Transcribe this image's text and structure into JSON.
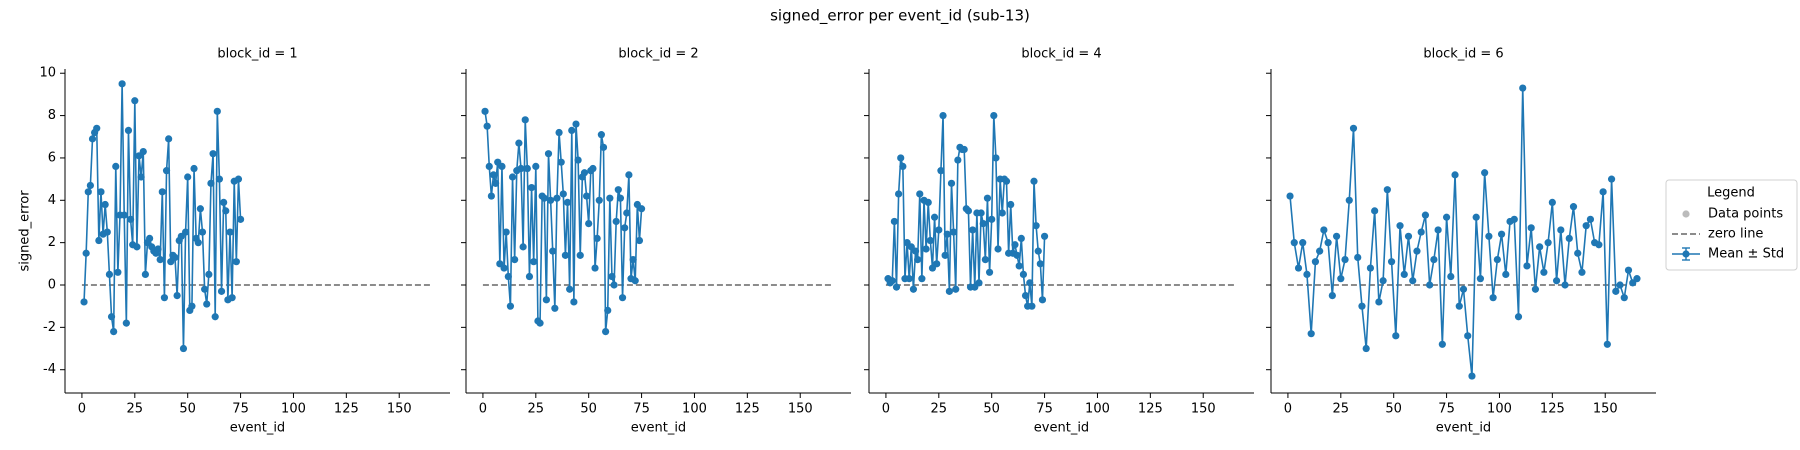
{
  "title": "signed_error per event_id (sub-13)",
  "legend": {
    "title": "Legend",
    "entries": [
      {
        "label": "Data points",
        "kind": "point",
        "color": "#bbbbbb"
      },
      {
        "label": "zero line",
        "kind": "dashed",
        "color": "#666666"
      },
      {
        "label": "Mean ± Std",
        "kind": "errorbar",
        "color": "#1f77b4"
      }
    ]
  },
  "chart_data": [
    {
      "type": "line",
      "title": "block_id = 1",
      "x_label": "event_id",
      "y_label": "signed_error",
      "ytick_labels": true,
      "xlim": [
        -8,
        174
      ],
      "xticks": [
        0,
        25,
        50,
        75,
        100,
        125,
        150
      ],
      "ylim": [
        -5.1,
        10.2
      ],
      "yticks": [
        -4,
        -2,
        0,
        2,
        4,
        6,
        8,
        10
      ],
      "zero_line": {
        "value": 0,
        "x": [
          0,
          165
        ],
        "color": "#666666"
      },
      "x": [
        1,
        2,
        3,
        4,
        5,
        6,
        7,
        8,
        9,
        10,
        11,
        12,
        13,
        14,
        15,
        16,
        17,
        18,
        19,
        20,
        21,
        22,
        23,
        24,
        25,
        26,
        27,
        28,
        29,
        30,
        31,
        32,
        33,
        34,
        35,
        36,
        37,
        38,
        39,
        40,
        41,
        42,
        43,
        44,
        45,
        46,
        47,
        48,
        49,
        50,
        51,
        52,
        53,
        54,
        55,
        56,
        57,
        58,
        59,
        60,
        61,
        62,
        63,
        64,
        65,
        66,
        67,
        68,
        69,
        70,
        71,
        72,
        73,
        74,
        75
      ],
      "series": [
        {
          "color": "#1f77b4",
          "values": [
            -0.8,
            1.5,
            4.4,
            4.7,
            6.9,
            7.2,
            7.4,
            2.1,
            4.4,
            2.4,
            3.8,
            2.5,
            0.5,
            -1.5,
            -2.2,
            5.6,
            0.6,
            3.3,
            9.5,
            3.3,
            -1.8,
            7.3,
            3.1,
            1.9,
            8.7,
            1.8,
            6.1,
            5.1,
            6.3,
            0.5,
            2.0,
            2.2,
            1.8,
            1.6,
            1.5,
            1.7,
            1.2,
            4.4,
            -0.6,
            5.4,
            6.9,
            1.1,
            1.4,
            1.3,
            -0.5,
            2.1,
            2.3,
            -3.0,
            2.5,
            5.1,
            -1.2,
            -1.0,
            5.5,
            2.2,
            2.0,
            3.6,
            2.5,
            -0.2,
            -0.9,
            0.5,
            4.8,
            6.2,
            -1.5,
            8.2,
            5.0,
            -0.3,
            3.9,
            3.5,
            -0.7,
            2.5,
            -0.6,
            4.9,
            1.1,
            5.0,
            3.1
          ]
        }
      ]
    },
    {
      "type": "line",
      "title": "block_id = 2",
      "x_label": "event_id",
      "ytick_labels": false,
      "xlim": [
        -8,
        174
      ],
      "xticks": [
        0,
        25,
        50,
        75,
        100,
        125,
        150
      ],
      "ylim": [
        -5.1,
        10.2
      ],
      "yticks": [
        -4,
        -2,
        0,
        2,
        4,
        6,
        8,
        10
      ],
      "zero_line": {
        "value": 0,
        "x": [
          0,
          165
        ],
        "color": "#666666"
      },
      "x": [
        1,
        2,
        3,
        4,
        5,
        6,
        7,
        8,
        9,
        10,
        11,
        12,
        13,
        14,
        15,
        16,
        17,
        18,
        19,
        20,
        21,
        22,
        23,
        24,
        25,
        26,
        27,
        28,
        29,
        30,
        31,
        32,
        33,
        34,
        35,
        36,
        37,
        38,
        39,
        40,
        41,
        42,
        43,
        44,
        45,
        46,
        47,
        48,
        49,
        50,
        51,
        52,
        53,
        54,
        55,
        56,
        57,
        58,
        59,
        60,
        61,
        62,
        63,
        64,
        65,
        66,
        67,
        68,
        69,
        70,
        71,
        72,
        73,
        74,
        75
      ],
      "series": [
        {
          "color": "#1f77b4",
          "values": [
            8.2,
            7.5,
            5.6,
            4.2,
            5.2,
            4.8,
            5.8,
            1.0,
            5.6,
            0.8,
            2.5,
            0.4,
            -1.0,
            5.1,
            1.2,
            5.4,
            6.7,
            5.5,
            1.8,
            7.8,
            5.5,
            0.4,
            4.6,
            1.1,
            5.6,
            -1.7,
            -1.8,
            4.2,
            4.1,
            -0.7,
            6.2,
            4.0,
            1.6,
            -1.1,
            4.1,
            7.2,
            5.8,
            4.3,
            1.4,
            3.9,
            -0.2,
            7.3,
            -0.8,
            7.6,
            5.9,
            1.4,
            5.1,
            5.3,
            4.2,
            2.9,
            5.4,
            5.5,
            0.8,
            2.2,
            4.0,
            7.1,
            6.5,
            -2.2,
            -1.2,
            4.1,
            0.4,
            0.0,
            3.0,
            4.5,
            4.1,
            -0.6,
            2.7,
            3.4,
            5.2,
            0.3,
            1.2,
            0.2,
            3.8,
            2.1,
            3.6
          ]
        }
      ]
    },
    {
      "type": "line",
      "title": "block_id = 4",
      "x_label": "event_id",
      "ytick_labels": false,
      "xlim": [
        -8,
        174
      ],
      "xticks": [
        0,
        25,
        50,
        75,
        100,
        125,
        150
      ],
      "ylim": [
        -5.1,
        10.2
      ],
      "yticks": [
        -4,
        -2,
        0,
        2,
        4,
        6,
        8,
        10
      ],
      "zero_line": {
        "value": 0,
        "x": [
          0,
          165
        ],
        "color": "#666666"
      },
      "x": [
        1,
        2,
        3,
        4,
        5,
        6,
        7,
        8,
        9,
        10,
        11,
        12,
        13,
        14,
        15,
        16,
        17,
        18,
        19,
        20,
        21,
        22,
        23,
        24,
        25,
        26,
        27,
        28,
        29,
        30,
        31,
        32,
        33,
        34,
        35,
        36,
        37,
        38,
        39,
        40,
        41,
        42,
        43,
        44,
        45,
        46,
        47,
        48,
        49,
        50,
        51,
        52,
        53,
        54,
        55,
        56,
        57,
        58,
        59,
        60,
        61,
        62,
        63,
        64,
        65,
        66,
        67,
        68,
        69,
        70,
        71,
        72,
        73,
        74,
        75
      ],
      "series": [
        {
          "color": "#1f77b4",
          "values": [
            0.3,
            0.1,
            0.2,
            3.0,
            -0.1,
            4.3,
            6.0,
            5.6,
            0.3,
            2.0,
            0.3,
            1.8,
            -0.2,
            1.6,
            1.2,
            4.3,
            0.3,
            4.0,
            1.7,
            3.9,
            2.1,
            0.8,
            3.2,
            1.0,
            2.6,
            5.4,
            8.0,
            1.4,
            2.4,
            -0.3,
            4.8,
            2.5,
            -0.2,
            5.9,
            6.5,
            6.4,
            6.4,
            3.6,
            3.5,
            -0.1,
            2.6,
            -0.1,
            3.4,
            0.1,
            3.4,
            2.9,
            1.2,
            4.1,
            0.6,
            3.1,
            8.0,
            6.0,
            1.7,
            5.0,
            3.4,
            5.0,
            4.9,
            1.5,
            3.8,
            1.5,
            1.9,
            1.4,
            0.9,
            2.2,
            0.5,
            -0.5,
            -1.0,
            0.1,
            -1.0,
            4.9,
            2.8,
            1.6,
            1.0,
            -0.7,
            2.3
          ]
        }
      ]
    },
    {
      "type": "line",
      "title": "block_id = 6",
      "x_label": "event_id",
      "ytick_labels": false,
      "xlim": [
        -8,
        174
      ],
      "xticks": [
        0,
        25,
        50,
        75,
        100,
        125,
        150
      ],
      "ylim": [
        -5.1,
        10.2
      ],
      "yticks": [
        -4,
        -2,
        0,
        2,
        4,
        6,
        8,
        10
      ],
      "zero_line": {
        "value": 0,
        "x": [
          0,
          165
        ],
        "color": "#666666"
      },
      "x": [
        1,
        3,
        5,
        7,
        9,
        11,
        13,
        15,
        17,
        19,
        21,
        23,
        25,
        27,
        29,
        31,
        33,
        35,
        37,
        39,
        41,
        43,
        45,
        47,
        49,
        51,
        53,
        55,
        57,
        59,
        61,
        63,
        65,
        67,
        69,
        71,
        73,
        75,
        77,
        79,
        81,
        83,
        85,
        87,
        89,
        91,
        93,
        95,
        97,
        99,
        101,
        103,
        105,
        107,
        109,
        111,
        113,
        115,
        117,
        119,
        121,
        123,
        125,
        127,
        129,
        131,
        133,
        135,
        137,
        139,
        141,
        143,
        145,
        147,
        149,
        151,
        153,
        155,
        157,
        159,
        161,
        163,
        165
      ],
      "series": [
        {
          "color": "#1f77b4",
          "values": [
            4.2,
            2.0,
            0.8,
            2.0,
            0.5,
            -2.3,
            1.1,
            1.6,
            2.6,
            2.0,
            -0.5,
            2.3,
            0.3,
            1.2,
            4.0,
            7.4,
            1.3,
            -1.0,
            -3.0,
            0.8,
            3.5,
            -0.8,
            0.2,
            4.5,
            1.1,
            -2.4,
            2.8,
            0.5,
            2.3,
            0.2,
            1.6,
            2.5,
            3.3,
            0.0,
            1.2,
            2.6,
            -2.8,
            3.2,
            0.4,
            5.2,
            -1.0,
            -0.2,
            -2.4,
            -4.3,
            3.2,
            0.3,
            5.3,
            2.3,
            -0.6,
            1.2,
            2.4,
            0.5,
            3.0,
            3.1,
            -1.5,
            9.3,
            0.9,
            2.7,
            -0.2,
            1.8,
            0.6,
            2.0,
            3.9,
            0.2,
            2.6,
            0.0,
            2.2,
            3.7,
            1.5,
            0.6,
            2.8,
            3.1,
            2.0,
            1.9,
            4.4,
            -2.8,
            5.0,
            -0.3,
            0.0,
            -0.6,
            0.7,
            0.1,
            0.3
          ]
        }
      ]
    }
  ]
}
